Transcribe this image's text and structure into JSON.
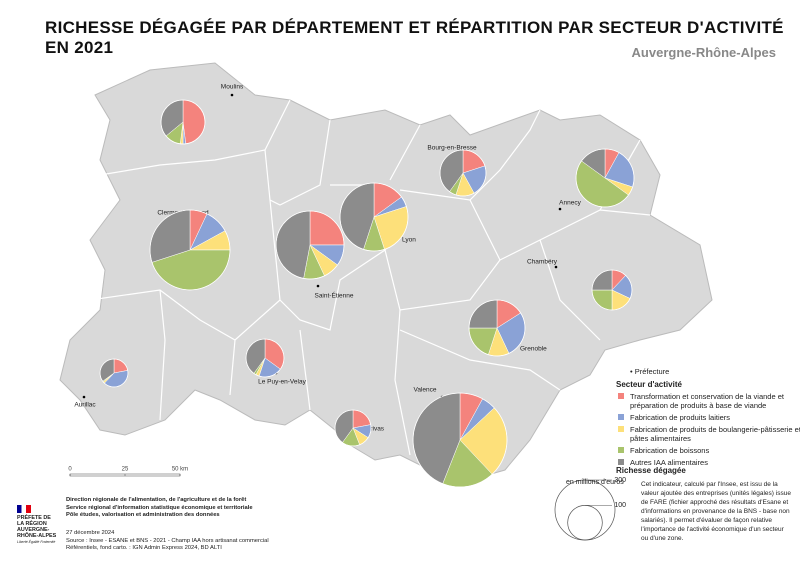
{
  "header": {
    "title": "RICHESSE DÉGAGÉE PAR DÉPARTEMENT ET RÉPARTITION PAR SECTEUR D'ACTIVITÉ EN 2021",
    "subtitle": "Auvergne-Rhône-Alpes"
  },
  "sectors": [
    {
      "name": "Transformation et conservation de la viande et préparation de produits à base de viande",
      "color": "#f4837d"
    },
    {
      "name": "Fabrication de produits laitiers",
      "color": "#8aa2d6"
    },
    {
      "name": "Fabrication de produits de boulangerie-pâtisserie et de pâtes alimentaires",
      "color": "#fde07a"
    },
    {
      "name": "Fabrication de boissons",
      "color": "#a9c46c"
    },
    {
      "name": "Autres IAA alimentaires",
      "color": "#8c8c8c"
    }
  ],
  "departments": [
    {
      "label": "Moulins",
      "total": 161,
      "shares": [
        48,
        2,
        2,
        12,
        36
      ]
    },
    {
      "label": "Bourg-en-Bresse",
      "total": 176,
      "shares": [
        20,
        22,
        13,
        5,
        40
      ]
    },
    {
      "label": "Annecy",
      "total": 280,
      "shares": [
        8,
        22,
        5,
        50,
        15
      ]
    },
    {
      "label": "Clermont-Ferrand",
      "total": 533,
      "shares": [
        7,
        10,
        8,
        45,
        30
      ]
    },
    {
      "label": "Saint-Étienne",
      "total": 385,
      "shares": [
        25,
        10,
        8,
        10,
        47
      ]
    },
    {
      "label": "Lyon",
      "total": 385,
      "shares": [
        15,
        5,
        25,
        10,
        45
      ]
    },
    {
      "label": "Chambéry",
      "total": 133,
      "shares": [
        12,
        20,
        18,
        25,
        25
      ]
    },
    {
      "label": "Grenoble",
      "total": 261,
      "shares": [
        16,
        27,
        12,
        20,
        25
      ]
    },
    {
      "label": "Aurillac",
      "total": 65,
      "shares": [
        22,
        40,
        2,
        1,
        35
      ]
    },
    {
      "label": "Le Puy-en-Velay",
      "total": 120,
      "shares": [
        35,
        20,
        3,
        2,
        40
      ]
    },
    {
      "label": "Privas",
      "total": 108,
      "shares": [
        22,
        12,
        10,
        16,
        40
      ]
    },
    {
      "label": "Valence",
      "total": 736,
      "shares": [
        8,
        5,
        25,
        18,
        44
      ]
    }
  ],
  "legend": {
    "prefecture": "Préfecture",
    "sector_title": "Secteur d'activité",
    "size_title": "Richesse dégagée",
    "size_unit": "en millions d'euros",
    "sizes": [
      300,
      100
    ],
    "description": "Cet indicateur, calculé par l'Insee, est issu de la valeur ajoutée des entreprises (unités légales) issue de FARE (fichier approché des résultats d'Esane et d'informations en provenance de la BNS - base non salariés). Il permet d'évaluer de façon relative l'importance de l'activité économique d'un secteur ou d'une zone."
  },
  "scale_bar": [
    0,
    25,
    {
      "value": 50,
      "label": "50 km"
    }
  ],
  "footer": {
    "logo": "PRÉFETE DE LA RÉGION AUVERGNE-RHÔNE-ALPES",
    "motto": "Liberté Égalité Fraternité",
    "org": [
      "Direction régionale de l'alimentation, de l'agriculture et de la forêt",
      "Service régional d'information statistique économique et territoriale",
      "Pôle études, valorisation et administration des données"
    ],
    "date": "27 décembre 2024",
    "source": "Source : Insee - ESANE et BNS - 2021 - Champ IAA hors artisanat commercial",
    "refs": "Référentiels, fond carto. : IGN Admin Express 2024, BD ALTI"
  }
}
